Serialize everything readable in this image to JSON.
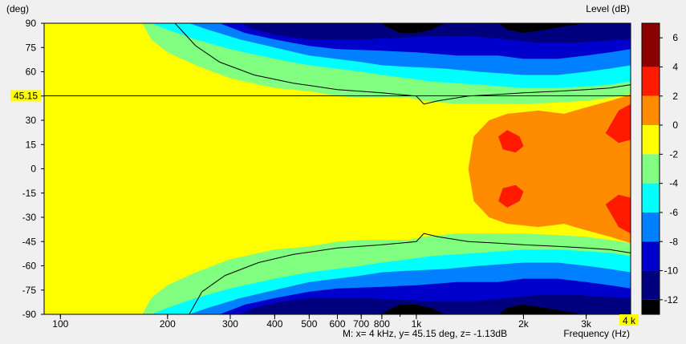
{
  "chart_data": {
    "type": "heatmap",
    "title": "",
    "ylabel": "(deg)",
    "xlabel": "Frequency (Hz)",
    "colorbar_label": "Level (dB)",
    "x_scale": "log",
    "xlim": [
      90,
      4000
    ],
    "ylim": [
      -90,
      90
    ],
    "x_ticks": [
      {
        "value": 100,
        "label": "100"
      },
      {
        "value": 200,
        "label": "200"
      },
      {
        "value": 300,
        "label": "300"
      },
      {
        "value": 400,
        "label": "400"
      },
      {
        "value": 500,
        "label": "500"
      },
      {
        "value": 600,
        "label": "600"
      },
      {
        "value": 700,
        "label": "700"
      },
      {
        "value": 800,
        "label": "800"
      },
      {
        "value": 1000,
        "label": "1k"
      },
      {
        "value": 2000,
        "label": "2k"
      },
      {
        "value": 3000,
        "label": "3k"
      }
    ],
    "y_ticks": [
      90,
      75,
      60,
      45,
      30,
      15,
      0,
      -15,
      -30,
      -45,
      -60,
      -75,
      -90
    ],
    "marker_y": {
      "value": 45.15,
      "label": "45.15"
    },
    "marker_x": {
      "value": 4000,
      "label": "4 k"
    },
    "readout": "M:  x= 4 kHz,  y= 45.15 deg, z= -1.13dB",
    "colorbar": {
      "ticks": [
        6,
        4,
        2,
        0,
        -2,
        -4,
        -6,
        -8,
        -10,
        -12
      ],
      "bands": [
        {
          "from": 4,
          "to": 7,
          "color": "#8b0000"
        },
        {
          "from": 2,
          "to": 4,
          "color": "#ff1a00"
        },
        {
          "from": 0,
          "to": 2,
          "color": "#ff8c00"
        },
        {
          "from": -2,
          "to": 0,
          "color": "#ffff00"
        },
        {
          "from": -4,
          "to": -2,
          "color": "#80ff80"
        },
        {
          "from": -6,
          "to": -4,
          "color": "#00ffff"
        },
        {
          "from": -8,
          "to": -6,
          "color": "#0080ff"
        },
        {
          "from": -10,
          "to": -8,
          "color": "#0000cd"
        },
        {
          "from": -12,
          "to": -10,
          "color": "#00007f"
        },
        {
          "from": -13,
          "to": -12,
          "color": "#000000"
        }
      ]
    },
    "contour_levels": [
      {
        "level": -2,
        "color": "#80ff80",
        "boundary": [
          [
            90,
            90
          ],
          [
            170,
            90
          ],
          [
            180,
            80
          ],
          [
            200,
            72
          ],
          [
            240,
            64
          ],
          [
            300,
            56
          ],
          [
            400,
            50
          ],
          [
            500,
            48
          ],
          [
            600,
            45
          ],
          [
            700,
            44
          ],
          [
            800,
            44
          ],
          [
            950,
            44
          ],
          [
            1050,
            42
          ],
          [
            1300,
            40
          ],
          [
            1600,
            40
          ],
          [
            2000,
            40
          ],
          [
            2500,
            41
          ],
          [
            3000,
            42
          ],
          [
            3500,
            44
          ],
          [
            4000,
            46
          ]
        ]
      },
      {
        "level": -4,
        "color": "#00ffff",
        "boundary": [
          [
            90,
            90
          ],
          [
            180,
            90
          ],
          [
            200,
            86
          ],
          [
            240,
            80
          ],
          [
            300,
            74
          ],
          [
            400,
            68
          ],
          [
            500,
            64
          ],
          [
            700,
            60
          ],
          [
            800,
            58
          ],
          [
            950,
            56
          ],
          [
            1100,
            54
          ],
          [
            1500,
            52
          ],
          [
            2000,
            50
          ],
          [
            2500,
            50
          ],
          [
            3000,
            51
          ],
          [
            3500,
            52
          ],
          [
            4000,
            54
          ]
        ]
      },
      {
        "level": -6,
        "color": "#0080ff",
        "boundary": [
          [
            90,
            90
          ],
          [
            230,
            90
          ],
          [
            260,
            86
          ],
          [
            320,
            80
          ],
          [
            400,
            75
          ],
          [
            500,
            70
          ],
          [
            700,
            66
          ],
          [
            800,
            64
          ],
          [
            950,
            63
          ],
          [
            1200,
            62
          ],
          [
            1500,
            60
          ],
          [
            2000,
            58
          ],
          [
            2500,
            58
          ],
          [
            3000,
            60
          ],
          [
            3500,
            62
          ],
          [
            4000,
            64
          ]
        ]
      },
      {
        "level": -8,
        "color": "#0000cd",
        "boundary": [
          [
            90,
            90
          ],
          [
            280,
            90
          ],
          [
            330,
            84
          ],
          [
            400,
            80
          ],
          [
            500,
            76
          ],
          [
            600,
            74
          ],
          [
            800,
            73
          ],
          [
            1000,
            72
          ],
          [
            1300,
            70
          ],
          [
            1700,
            70
          ],
          [
            2000,
            68
          ],
          [
            2500,
            68
          ],
          [
            3000,
            70
          ],
          [
            3500,
            72
          ],
          [
            4000,
            74
          ]
        ]
      },
      {
        "level": -10,
        "color": "#00007f",
        "boundary": [
          [
            90,
            90
          ],
          [
            320,
            90
          ],
          [
            350,
            86
          ],
          [
            420,
            82
          ],
          [
            500,
            80
          ],
          [
            700,
            80
          ],
          [
            900,
            81
          ],
          [
            1100,
            82
          ],
          [
            1400,
            82
          ],
          [
            1800,
            80
          ],
          [
            2200,
            78
          ],
          [
            2800,
            78
          ],
          [
            3300,
            79
          ],
          [
            4000,
            80
          ]
        ]
      },
      {
        "level": -12,
        "color": "#000000",
        "boundary": [
          [
            90,
            90
          ],
          [
            800,
            90
          ],
          [
            820,
            88
          ],
          [
            900,
            84
          ],
          [
            1000,
            84
          ],
          [
            1100,
            86
          ],
          [
            1200,
            90
          ],
          [
            1700,
            90
          ],
          [
            1800,
            86
          ],
          [
            2000,
            84
          ],
          [
            2300,
            86
          ],
          [
            2600,
            88
          ],
          [
            3000,
            90
          ]
        ]
      }
    ],
    "hot_regions": [
      {
        "level": 0,
        "color": "#ff8c00",
        "polygon": [
          [
            1400,
            0
          ],
          [
            1450,
            20
          ],
          [
            1600,
            30
          ],
          [
            1800,
            34
          ],
          [
            2200,
            36
          ],
          [
            2600,
            34
          ],
          [
            3000,
            38
          ],
          [
            3500,
            42
          ],
          [
            4000,
            46
          ],
          [
            4000,
            -46
          ],
          [
            3500,
            -42
          ],
          [
            3000,
            -38
          ],
          [
            2600,
            -34
          ],
          [
            2200,
            -36
          ],
          [
            1800,
            -34
          ],
          [
            1600,
            -30
          ],
          [
            1450,
            -20
          ]
        ]
      },
      {
        "level": 2,
        "color": "#ff1a00",
        "polygon": [
          [
            1700,
            20
          ],
          [
            1800,
            24
          ],
          [
            1950,
            20
          ],
          [
            2000,
            14
          ],
          [
            1900,
            10
          ],
          [
            1750,
            12
          ]
        ]
      },
      {
        "level": 2,
        "color": "#ff1a00",
        "polygon": [
          [
            1700,
            -20
          ],
          [
            1800,
            -24
          ],
          [
            1950,
            -20
          ],
          [
            2000,
            -14
          ],
          [
            1900,
            -10
          ],
          [
            1750,
            -12
          ]
        ]
      },
      {
        "level": 2,
        "color": "#ff1a00",
        "polygon": [
          [
            3400,
            22
          ],
          [
            3700,
            36
          ],
          [
            4000,
            40
          ],
          [
            4000,
            18
          ],
          [
            3700,
            16
          ]
        ]
      },
      {
        "level": 2,
        "color": "#ff1a00",
        "polygon": [
          [
            3400,
            -22
          ],
          [
            3700,
            -36
          ],
          [
            4000,
            -40
          ],
          [
            4000,
            -18
          ],
          [
            3700,
            -16
          ]
        ]
      }
    ],
    "line_contour": {
      "level": -1.13,
      "color": "#000000",
      "upper": [
        [
          210,
          90
        ],
        [
          240,
          76
        ],
        [
          280,
          66
        ],
        [
          350,
          58
        ],
        [
          450,
          53
        ],
        [
          600,
          49
        ],
        [
          800,
          47
        ],
        [
          1000,
          45
        ],
        [
          1050,
          40
        ],
        [
          1150,
          42
        ],
        [
          1400,
          45
        ],
        [
          1700,
          46
        ],
        [
          2000,
          47
        ],
        [
          2500,
          48
        ],
        [
          3000,
          49
        ],
        [
          3500,
          50
        ],
        [
          4000,
          52
        ]
      ],
      "lower": [
        [
          230,
          -90
        ],
        [
          250,
          -76
        ],
        [
          290,
          -66
        ],
        [
          360,
          -58
        ],
        [
          450,
          -53
        ],
        [
          600,
          -49
        ],
        [
          800,
          -47
        ],
        [
          1000,
          -45
        ],
        [
          1050,
          -40
        ],
        [
          1150,
          -42
        ],
        [
          1400,
          -45
        ],
        [
          1700,
          -46
        ],
        [
          2000,
          -47
        ],
        [
          2500,
          -48
        ],
        [
          3000,
          -49
        ],
        [
          3500,
          -50
        ],
        [
          4000,
          -52
        ]
      ]
    }
  }
}
